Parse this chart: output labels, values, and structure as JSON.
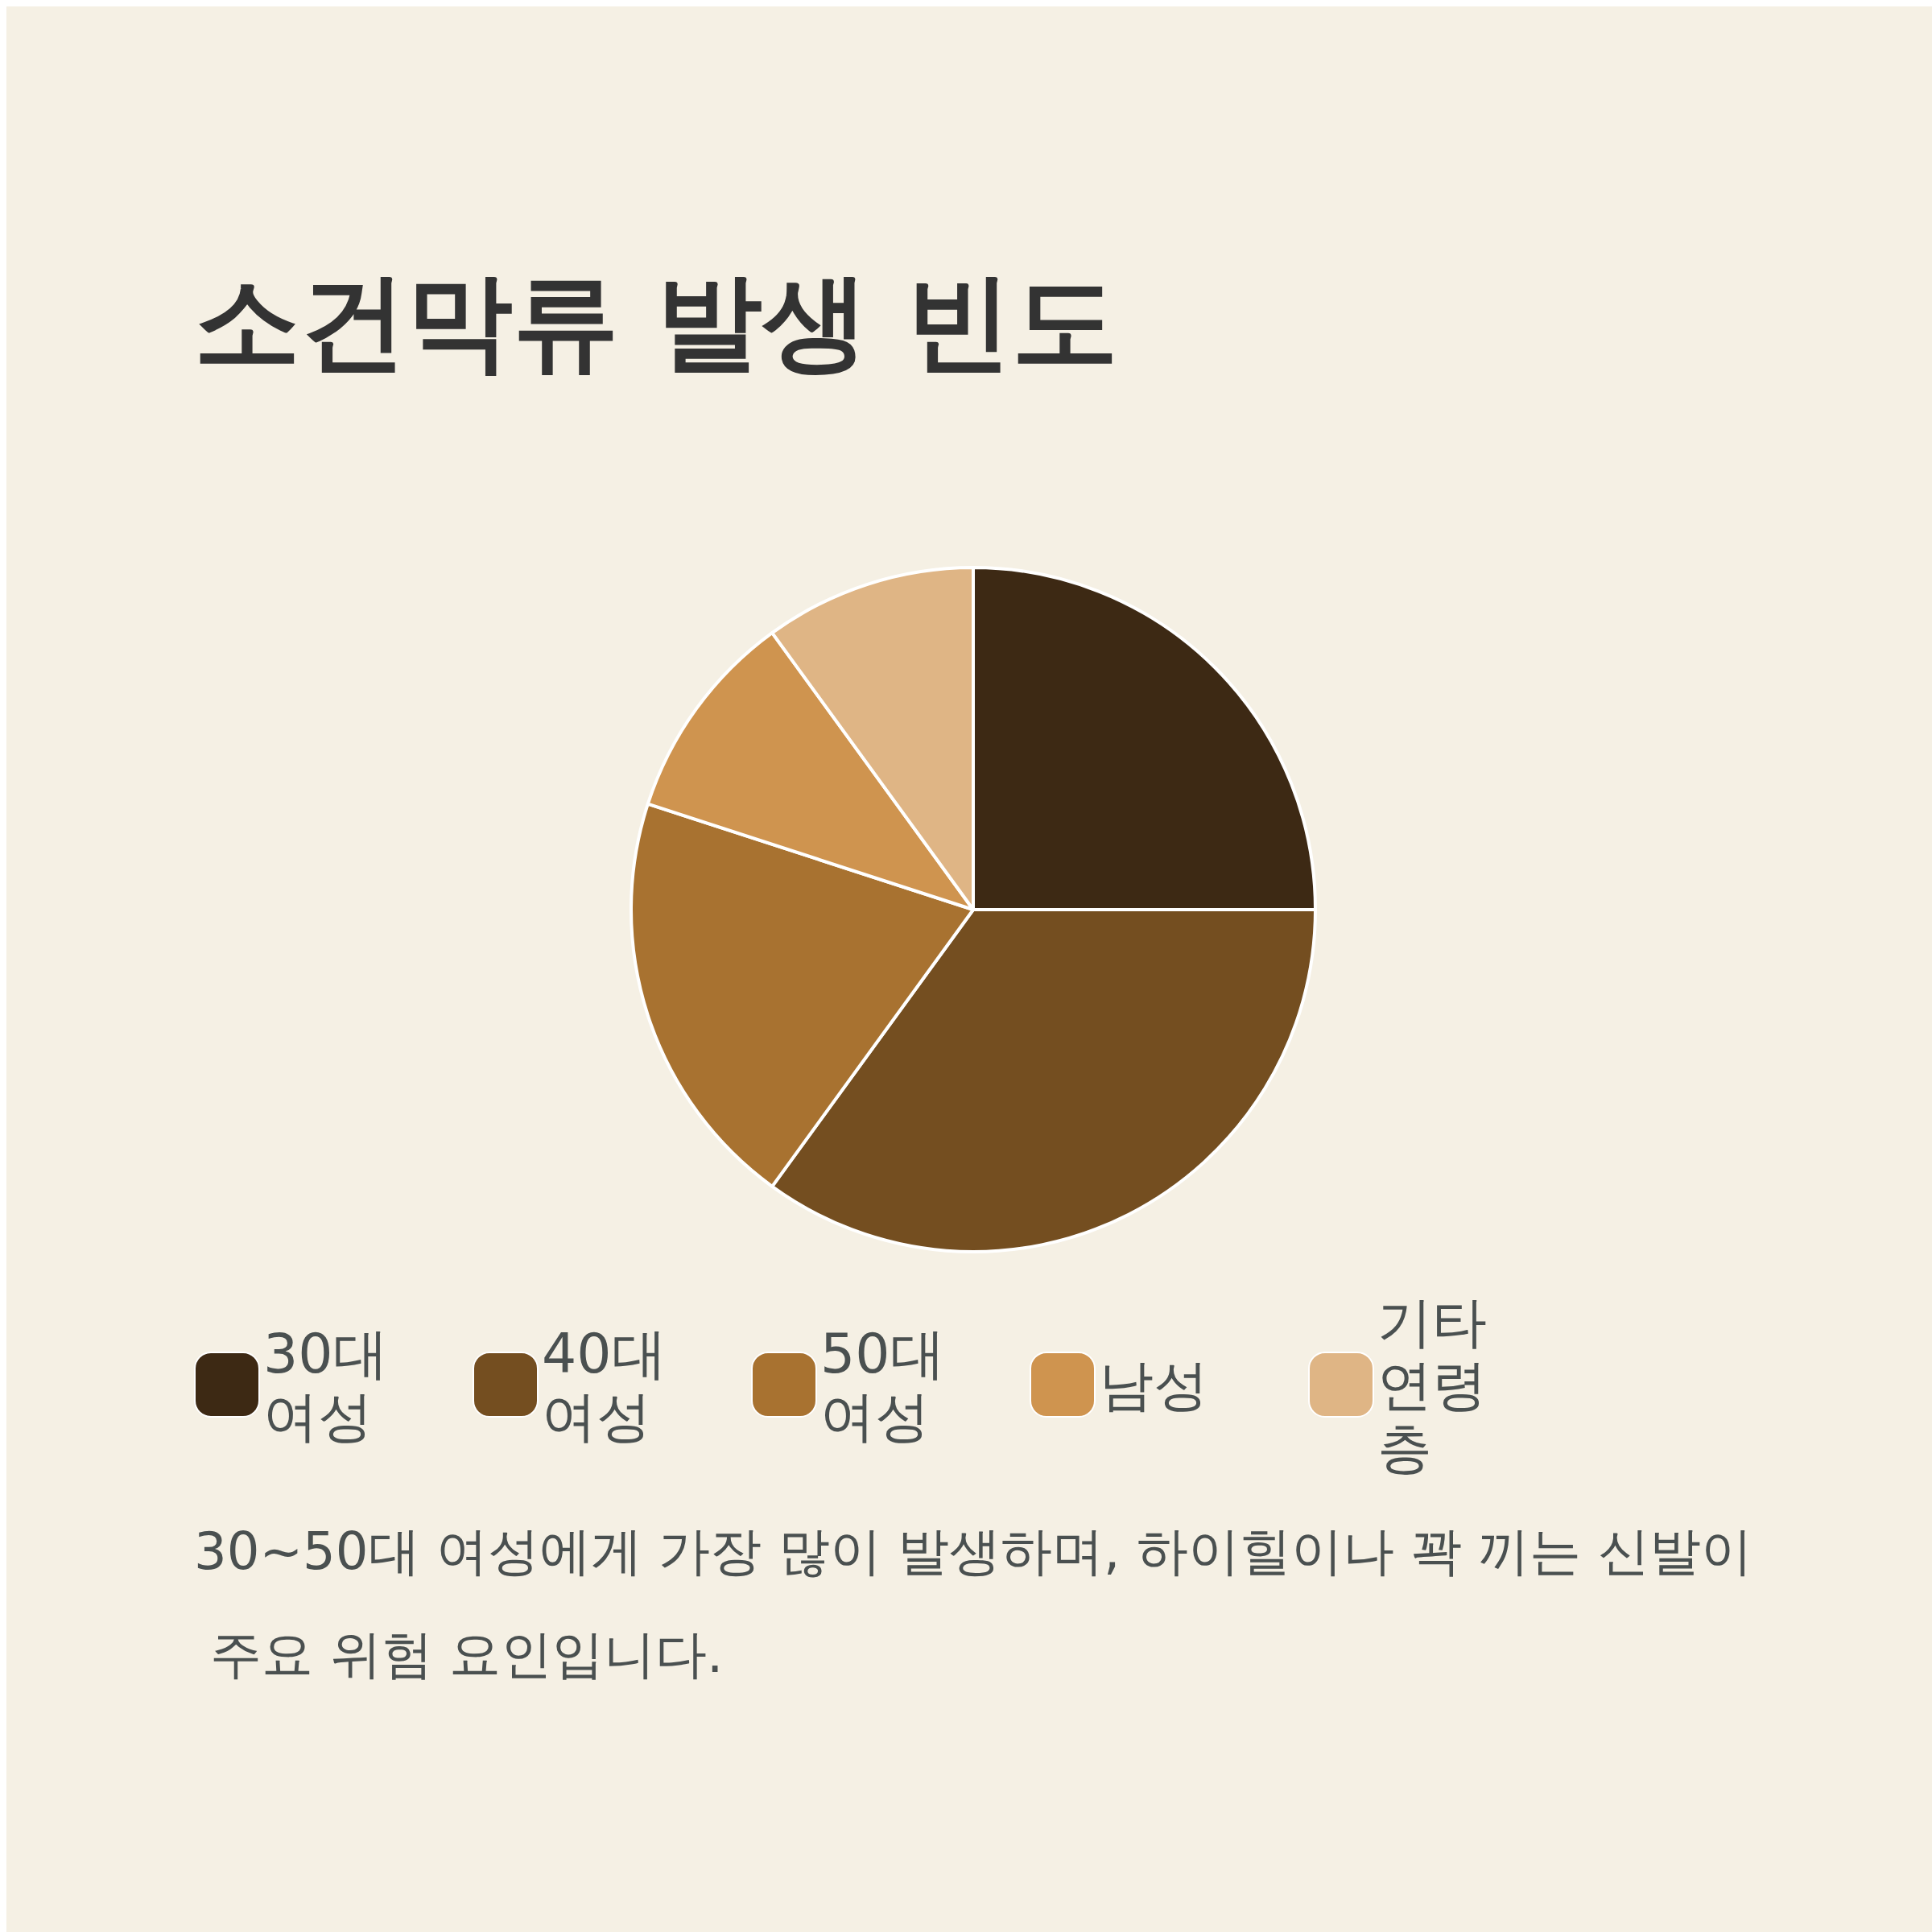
{
  "chart_data": {
    "type": "pie",
    "title": "소건막류 발생 빈도",
    "categories": [
      "30대 여성",
      "40대 여성",
      "50대 여성",
      "남성",
      "기타 연령층"
    ],
    "values": [
      25,
      35,
      20,
      10,
      10
    ],
    "colors": [
      "#3d2914",
      "#744e20",
      "#a87230",
      "#cf944f",
      "#dfb585"
    ],
    "legend": "bottom",
    "annotations": [
      "30~50대 여성에게 가장 많이 발생하며, 하이힐이나 꽉 끼는 신발이 주요 위험 요인입니다."
    ]
  }
}
